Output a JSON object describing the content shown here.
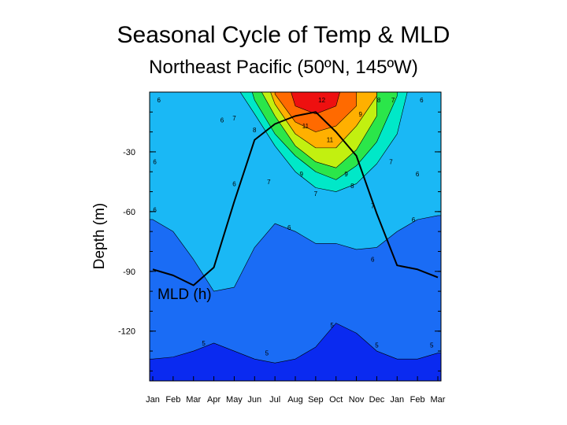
{
  "chart_data": {
    "type": "heatmap",
    "title": "Seasonal Cycle of Temp & MLD",
    "subtitle": "Northeast Pacific (50ºN, 145ºW)",
    "xlabel": "",
    "ylabel": "Depth (m)",
    "categories": [
      "Jan",
      "Feb",
      "Mar",
      "Apr",
      "May",
      "Jun",
      "Jul",
      "Aug",
      "Sep",
      "Oct",
      "Nov",
      "Dec",
      "Jan",
      "Feb",
      "Mar"
    ],
    "y_ticks": [
      -30,
      -60,
      -90,
      -120
    ],
    "ylim": [
      -145,
      0
    ],
    "grid": false,
    "contour_levels": [
      5,
      6,
      7,
      8,
      9,
      10,
      11,
      12
    ],
    "level_colors": [
      "#0a2af0",
      "#1a6cf5",
      "#1ab8f5",
      "#00e8c8",
      "#2be64a",
      "#c2f010",
      "#ffb000",
      "#ff6a00",
      "#ee1010"
    ],
    "isotherm_depths": {
      "5": [
        -134,
        -133,
        -130,
        -126,
        -130,
        -134,
        -136,
        -134,
        -128,
        -116,
        -121,
        -130,
        -134,
        -134,
        -131
      ],
      "6": [
        -64,
        -70,
        -84,
        -100,
        -98,
        -78,
        -66,
        -70,
        -76,
        -76,
        -79,
        -78,
        -70,
        -64,
        -62
      ],
      "7": [
        null,
        null,
        null,
        null,
        null,
        -11,
        -27,
        -40,
        -48,
        -50,
        -46,
        -36,
        -21,
        null,
        null
      ],
      "8": [
        null,
        null,
        null,
        null,
        null,
        -4,
        -21,
        -32,
        -40,
        -44,
        -37,
        -25,
        -2,
        null,
        null
      ],
      "9": [
        null,
        null,
        null,
        null,
        null,
        null,
        -12,
        -27,
        -35,
        -38,
        -29,
        -12,
        null,
        null,
        null
      ],
      "10": [
        null,
        null,
        null,
        null,
        null,
        null,
        -6,
        -21,
        -28,
        -28,
        -17,
        -2,
        null,
        null,
        null
      ],
      "11": [
        null,
        null,
        null,
        null,
        null,
        null,
        -1,
        -15,
        -20,
        -17,
        -7,
        null,
        null,
        null,
        null
      ],
      "12": [
        null,
        null,
        null,
        null,
        null,
        null,
        null,
        -7,
        -11,
        -7,
        null,
        null,
        null,
        null,
        null
      ]
    },
    "surface_temp": [
      6.1,
      5.9,
      5.8,
      6.0,
      6.5,
      8.2,
      10.5,
      12.4,
      13.2,
      12.4,
      10.3,
      8.2,
      7.3,
      6.7,
      6.1
    ],
    "contour_labels": [
      {
        "text": "6",
        "x": 0.3,
        "y": -4
      },
      {
        "text": "6",
        "x": 3.4,
        "y": -14
      },
      {
        "text": "7",
        "x": 4.0,
        "y": -13
      },
      {
        "text": "8",
        "x": 5.0,
        "y": -19
      },
      {
        "text": "12",
        "x": 8.3,
        "y": -4
      },
      {
        "text": "9",
        "x": 10.2,
        "y": -11
      },
      {
        "text": "8",
        "x": 11.1,
        "y": -4
      },
      {
        "text": "7",
        "x": 11.8,
        "y": -4
      },
      {
        "text": "6",
        "x": 13.2,
        "y": -4
      },
      {
        "text": "11",
        "x": 7.5,
        "y": -17
      },
      {
        "text": "11",
        "x": 8.7,
        "y": -24
      },
      {
        "text": "6",
        "x": 0.1,
        "y": -35
      },
      {
        "text": "6",
        "x": 4.0,
        "y": -46
      },
      {
        "text": "7",
        "x": 5.7,
        "y": -45
      },
      {
        "text": "9",
        "x": 7.3,
        "y": -41
      },
      {
        "text": "9",
        "x": 9.5,
        "y": -41
      },
      {
        "text": "7",
        "x": 11.7,
        "y": -35
      },
      {
        "text": "6",
        "x": 13.0,
        "y": -41
      },
      {
        "text": "8",
        "x": 9.8,
        "y": -47
      },
      {
        "text": "7",
        "x": 8.0,
        "y": -51
      },
      {
        "text": "6",
        "x": 0.1,
        "y": -59
      },
      {
        "text": "7",
        "x": 10.8,
        "y": -57
      },
      {
        "text": "6",
        "x": 12.8,
        "y": -64
      },
      {
        "text": "6",
        "x": 6.7,
        "y": -68
      },
      {
        "text": "6",
        "x": 10.8,
        "y": -84
      },
      {
        "text": "5",
        "x": 8.8,
        "y": -117
      },
      {
        "text": "5",
        "x": 2.5,
        "y": -126
      },
      {
        "text": "5",
        "x": 5.6,
        "y": -131
      },
      {
        "text": "5",
        "x": 11.0,
        "y": -127
      },
      {
        "text": "5",
        "x": 13.7,
        "y": -127
      }
    ],
    "mld_series": {
      "name": "MLD (h)",
      "values": [
        -89,
        -92,
        -97,
        -88,
        -55,
        -24,
        -16,
        -12,
        -10,
        -20,
        -32,
        -61,
        -87,
        -89,
        -93
      ]
    }
  }
}
